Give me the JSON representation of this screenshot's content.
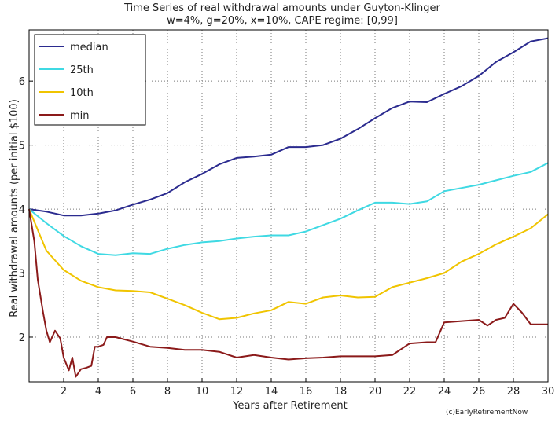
{
  "chart_data": {
    "type": "line",
    "title_lines": [
      "Time Series of real withdrawal amounts under Guyton-Klinger",
      "w=4%, g=20%, x=10%, CAPE regime: [0,99]"
    ],
    "xlabel": "Years after Retirement",
    "ylabel": "Real withdrawal amounts (per initial $100)",
    "xlim": [
      0,
      30
    ],
    "ylim": [
      1.3,
      6.8
    ],
    "xticks": [
      2,
      4,
      6,
      8,
      10,
      12,
      14,
      16,
      18,
      20,
      22,
      24,
      26,
      28,
      30
    ],
    "yticks": [
      2,
      3,
      4,
      5,
      6
    ],
    "grid": true,
    "legend_position": "top-left",
    "credit": "(c)EarlyRetirementNow",
    "series": [
      {
        "name": "median",
        "color": "#2b2b8f",
        "x": [
          0,
          1,
          2,
          3,
          4,
          5,
          6,
          7,
          8,
          9,
          10,
          11,
          12,
          13,
          14,
          15,
          16,
          17,
          18,
          19,
          20,
          21,
          22,
          23,
          24,
          25,
          26,
          27,
          28,
          29,
          30
        ],
        "y": [
          4.0,
          3.96,
          3.9,
          3.9,
          3.93,
          3.98,
          4.07,
          4.15,
          4.25,
          4.42,
          4.55,
          4.7,
          4.8,
          4.82,
          4.85,
          4.97,
          4.97,
          5.0,
          5.1,
          5.25,
          5.42,
          5.58,
          5.68,
          5.67,
          5.8,
          5.92,
          6.08,
          6.3,
          6.45,
          6.62,
          6.67
        ]
      },
      {
        "name": "25th",
        "color": "#3fd9e3",
        "x": [
          0,
          1,
          2,
          3,
          4,
          5,
          6,
          7,
          8,
          9,
          10,
          11,
          12,
          13,
          14,
          15,
          16,
          17,
          18,
          19,
          20,
          21,
          22,
          23,
          24,
          25,
          26,
          27,
          28,
          29,
          30
        ],
        "y": [
          4.0,
          3.78,
          3.58,
          3.42,
          3.3,
          3.28,
          3.31,
          3.3,
          3.38,
          3.44,
          3.48,
          3.5,
          3.54,
          3.57,
          3.59,
          3.59,
          3.65,
          3.75,
          3.85,
          3.98,
          4.1,
          4.1,
          4.08,
          4.12,
          4.28,
          4.33,
          4.38,
          4.45,
          4.52,
          4.58,
          4.72
        ]
      },
      {
        "name": "10th",
        "color": "#f0c400",
        "x": [
          0,
          1,
          2,
          3,
          4,
          5,
          6,
          7,
          8,
          9,
          10,
          11,
          12,
          13,
          14,
          15,
          16,
          17,
          18,
          19,
          20,
          21,
          22,
          23,
          24,
          25,
          26,
          27,
          28,
          29,
          30
        ],
        "y": [
          4.0,
          3.35,
          3.05,
          2.88,
          2.78,
          2.73,
          2.72,
          2.7,
          2.6,
          2.5,
          2.38,
          2.28,
          2.3,
          2.37,
          2.42,
          2.55,
          2.52,
          2.62,
          2.65,
          2.62,
          2.63,
          2.78,
          2.85,
          2.92,
          3.0,
          3.18,
          3.3,
          3.45,
          3.57,
          3.7,
          3.92
        ]
      },
      {
        "name": "min",
        "color": "#8b1a1a",
        "x": [
          0,
          0.3,
          0.5,
          0.8,
          1.0,
          1.2,
          1.5,
          1.8,
          2.0,
          2.3,
          2.5,
          2.7,
          3.0,
          3.3,
          3.6,
          3.8,
          4.0,
          4.3,
          4.5,
          5.0,
          6.0,
          7.0,
          8.0,
          9.0,
          10.0,
          11.0,
          12.0,
          13.0,
          14.0,
          15.0,
          16.0,
          17.0,
          18.0,
          19.0,
          20.0,
          21.0,
          22.0,
          23.0,
          23.5,
          24.0,
          25.0,
          26.0,
          26.5,
          27.0,
          27.5,
          28.0,
          28.5,
          29.0,
          30.0
        ],
        "y": [
          4.0,
          3.5,
          2.9,
          2.4,
          2.1,
          1.92,
          2.1,
          1.98,
          1.68,
          1.48,
          1.68,
          1.38,
          1.5,
          1.52,
          1.55,
          1.85,
          1.85,
          1.88,
          2.0,
          2.0,
          1.93,
          1.85,
          1.83,
          1.8,
          1.8,
          1.77,
          1.68,
          1.72,
          1.68,
          1.65,
          1.67,
          1.68,
          1.7,
          1.7,
          1.7,
          1.72,
          1.9,
          1.92,
          1.92,
          2.23,
          2.25,
          2.27,
          2.18,
          2.27,
          2.3,
          2.52,
          2.38,
          2.2,
          2.2
        ]
      }
    ]
  }
}
